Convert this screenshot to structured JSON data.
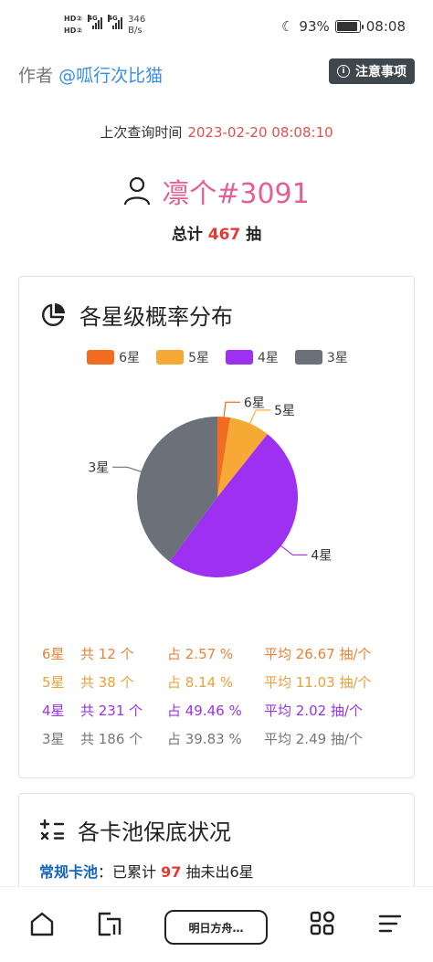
{
  "status_bar": {
    "net_type_1": "4G",
    "net_type_2": "4G",
    "speed_value": "346",
    "speed_unit": "B/s",
    "battery": "93%",
    "time": "08:08"
  },
  "header": {
    "author_label": "作者",
    "author_handle": "@呱行次比猫",
    "notice_button": "注意事项"
  },
  "query": {
    "label": "上次查询时间",
    "time": "2023-02-20 08:08:10"
  },
  "user": {
    "name": "凛个#3091",
    "total_prefix": "总计",
    "total_count": "467",
    "total_suffix": "抽"
  },
  "distribution": {
    "title": "各星级概率分布",
    "legend": [
      {
        "label": "6星",
        "color": "#f26d21"
      },
      {
        "label": "5星",
        "color": "#f7a935"
      },
      {
        "label": "4星",
        "color": "#9e30f2"
      },
      {
        "label": "3星",
        "color": "#6b7079"
      }
    ],
    "rows": [
      {
        "star": "6星",
        "count": "共 12 个",
        "pct": "占 2.57 %",
        "avg": "平均 26.67 抽/个",
        "color": "#e8833a"
      },
      {
        "star": "5星",
        "count": "共 38 个",
        "pct": "占 8.14 %",
        "avg": "平均 11.03 抽/个",
        "color": "#e6a23c"
      },
      {
        "star": "4星",
        "count": "共 231 个",
        "pct": "占 49.46 %",
        "avg": "平均 2.02 抽/个",
        "color": "#9a32e8"
      },
      {
        "star": "3星",
        "count": "共 186 个",
        "pct": "占 39.83 %",
        "avg": "平均 2.49 抽/个",
        "color": "#777777"
      }
    ]
  },
  "chart_data": {
    "type": "pie",
    "categories": [
      "6星",
      "5星",
      "4星",
      "3星"
    ],
    "values": [
      12,
      38,
      231,
      186
    ],
    "percentages": [
      2.57,
      8.14,
      49.46,
      39.83
    ],
    "colors": [
      "#f26d21",
      "#f7a935",
      "#9e30f2",
      "#6b7079"
    ],
    "legend": "top"
  },
  "pity": {
    "title": "各卡池保底状况",
    "pool_name": "常规卡池",
    "pool_sep": "：",
    "pool_text_1": "已累计",
    "pool_count": "97",
    "pool_text_2": "抽未出6星"
  },
  "nav": {
    "center_label": "明日方舟…"
  }
}
